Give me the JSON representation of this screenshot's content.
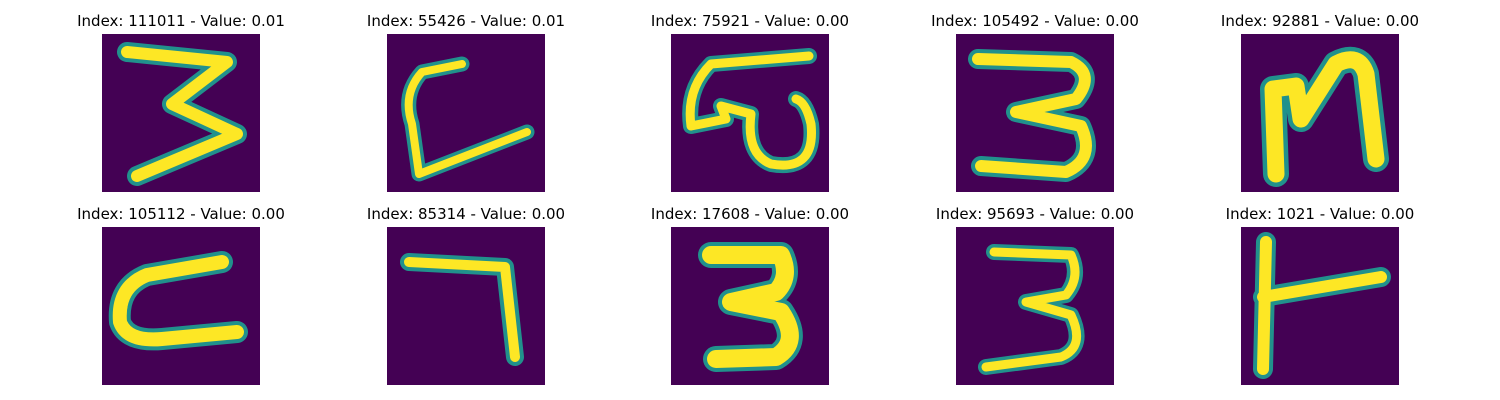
{
  "panels": [
    {
      "title": "Index: 111011 - Value: 0.01",
      "glyph": "digit-three-sharp"
    },
    {
      "title": "Index: 55426 - Value: 0.01",
      "glyph": "letter-l"
    },
    {
      "title": "Index: 75921 - Value: 0.00",
      "glyph": "script-w"
    },
    {
      "title": "Index: 105492 - Value: 0.00",
      "glyph": "digit-three"
    },
    {
      "title": "Index: 92881 - Value: 0.00",
      "glyph": "letter-n"
    },
    {
      "title": "Index: 105112 - Value: 0.00",
      "glyph": "letter-c"
    },
    {
      "title": "Index: 85314 - Value: 0.00",
      "glyph": "digit-seven"
    },
    {
      "title": "Index: 17608 - Value: 0.00",
      "glyph": "digit-three-bold"
    },
    {
      "title": "Index: 95693 - Value: 0.00",
      "glyph": "digit-three"
    },
    {
      "title": "Index: 1021 - Value: 0.00",
      "glyph": "letter-t-rotated"
    }
  ],
  "colors": {
    "background": "#440154",
    "edge": "#21918c",
    "stroke": "#fde725"
  }
}
